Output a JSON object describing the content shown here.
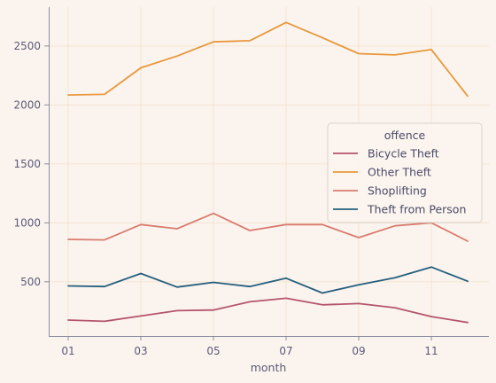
{
  "chart_data": {
    "type": "line",
    "xlabel": "month",
    "ylabel": "",
    "categories": [
      "01",
      "02",
      "03",
      "04",
      "05",
      "06",
      "07",
      "08",
      "09",
      "10",
      "11",
      "12"
    ],
    "x_tick_labels": [
      "01",
      "03",
      "05",
      "07",
      "09",
      "11"
    ],
    "y_ticks": [
      500,
      1000,
      1500,
      2000,
      2500
    ],
    "ylim": [
      40,
      2830
    ],
    "grid": true,
    "legend": {
      "title": "offence",
      "placement": "center-right"
    },
    "series": [
      {
        "name": "Bicycle Theft",
        "color": "#b5546e",
        "values": [
          175,
          165,
          210,
          255,
          260,
          330,
          360,
          305,
          315,
          280,
          205,
          155
        ]
      },
      {
        "name": "Other Theft",
        "color": "#e8973a",
        "values": [
          2085,
          2090,
          2315,
          2415,
          2535,
          2545,
          2700,
          2570,
          2435,
          2425,
          2470,
          2075
        ]
      },
      {
        "name": "Shoplifting",
        "color": "#d97b6e",
        "values": [
          860,
          855,
          985,
          950,
          1080,
          935,
          985,
          985,
          875,
          975,
          1000,
          845
        ]
      },
      {
        "name": "Theft from Person",
        "color": "#245f7e",
        "values": [
          465,
          460,
          570,
          455,
          495,
          460,
          530,
          405,
          475,
          535,
          625,
          505
        ]
      }
    ]
  }
}
